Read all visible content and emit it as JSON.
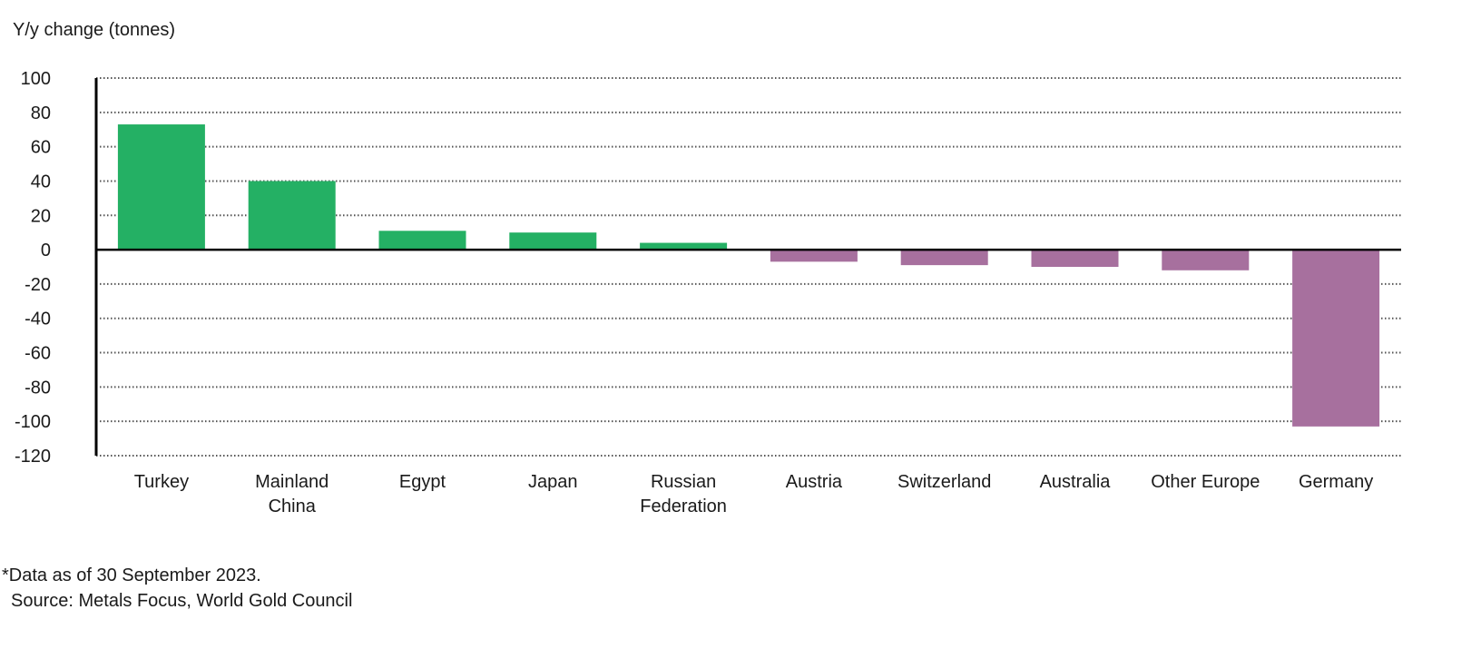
{
  "chart_data": {
    "type": "bar",
    "ylabel": "Y/y change (tonnes)",
    "categories": [
      "Turkey",
      "Mainland China",
      "Egypt",
      "Japan",
      "Russian Federation",
      "Austria",
      "Switzerland",
      "Australia",
      "Other Europe",
      "Germany"
    ],
    "category_lines": [
      [
        "Turkey"
      ],
      [
        "Mainland",
        "China"
      ],
      [
        "Egypt"
      ],
      [
        "Japan"
      ],
      [
        "Russian",
        "Federation"
      ],
      [
        "Austria"
      ],
      [
        "Switzerland"
      ],
      [
        "Australia"
      ],
      [
        "Other Europe"
      ],
      [
        "Germany"
      ]
    ],
    "values": [
      73,
      40,
      11,
      10,
      4,
      -7,
      -9,
      -10,
      -12,
      -103
    ],
    "ylim": [
      -120,
      100
    ],
    "yticks": [
      100,
      80,
      60,
      40,
      20,
      0,
      -20,
      -40,
      -60,
      -80,
      -100,
      -120
    ],
    "grid": true,
    "colors": {
      "positive": "#24b064",
      "negative": "#a7709e"
    }
  },
  "footnote": {
    "line1": "*Data as of 30 September 2023.",
    "line2": "Source: Metals Focus, World Gold Council"
  }
}
